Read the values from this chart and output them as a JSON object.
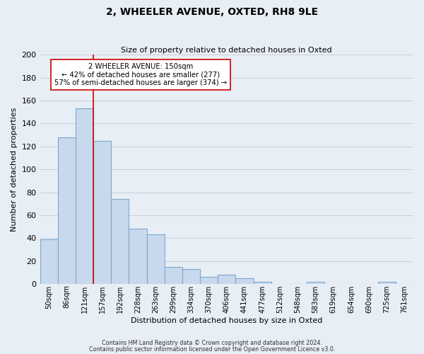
{
  "title": "2, WHEELER AVENUE, OXTED, RH8 9LE",
  "subtitle": "Size of property relative to detached houses in Oxted",
  "xlabel": "Distribution of detached houses by size in Oxted",
  "ylabel": "Number of detached properties",
  "bar_labels": [
    "50sqm",
    "86sqm",
    "121sqm",
    "157sqm",
    "192sqm",
    "228sqm",
    "263sqm",
    "299sqm",
    "334sqm",
    "370sqm",
    "406sqm",
    "441sqm",
    "477sqm",
    "512sqm",
    "548sqm",
    "583sqm",
    "619sqm",
    "654sqm",
    "690sqm",
    "725sqm",
    "761sqm"
  ],
  "bar_heights": [
    39,
    128,
    153,
    125,
    74,
    48,
    43,
    15,
    13,
    6,
    8,
    5,
    2,
    0,
    0,
    2,
    0,
    0,
    0,
    2,
    0
  ],
  "bar_color": "#c9d9ed",
  "bar_edgecolor": "#7ba7cc",
  "bar_linewidth": 0.8,
  "vline_x_index": 2.5,
  "vline_color": "#cc0000",
  "vline_linewidth": 1.2,
  "annotation_title": "2 WHEELER AVENUE: 150sqm",
  "annotation_line1": "← 42% of detached houses are smaller (277)",
  "annotation_line2": "57% of semi-detached houses are larger (374) →",
  "annotation_box_edgecolor": "#cc0000",
  "annotation_box_facecolor": "white",
  "ylim": [
    0,
    200
  ],
  "yticks": [
    0,
    20,
    40,
    60,
    80,
    100,
    120,
    140,
    160,
    180,
    200
  ],
  "grid_color": "#c8d0dc",
  "bg_color": "#e8eef5",
  "footer1": "Contains HM Land Registry data © Crown copyright and database right 2024.",
  "footer2": "Contains public sector information licensed under the Open Government Licence v3.0."
}
